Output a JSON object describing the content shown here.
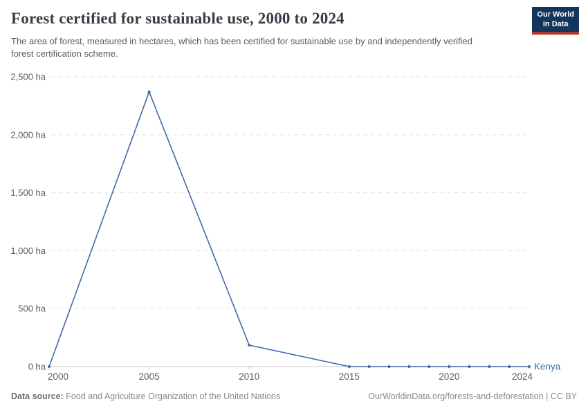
{
  "header": {
    "logo": {
      "line1": "Our World",
      "line2": "in Data",
      "background_color": "#14355c",
      "accent_color": "#b03a2e"
    }
  },
  "chart_data": {
    "type": "line",
    "title": "Forest certified for sustainable use, 2000 to 2024",
    "subtitle": "The area of forest, measured in hectares, which has been certified for sustainable use by and independently verified forest certification scheme.",
    "xlabel": "",
    "ylabel": "",
    "unit": "ha",
    "xlim": [
      2000,
      2024
    ],
    "ylim": [
      0,
      2500
    ],
    "grid": "horizontal-dashed",
    "legend_position": "end-of-line",
    "x_ticks": [
      {
        "value": 2000,
        "label": "2000"
      },
      {
        "value": 2005,
        "label": "2005"
      },
      {
        "value": 2010,
        "label": "2010"
      },
      {
        "value": 2015,
        "label": "2015"
      },
      {
        "value": 2020,
        "label": "2020"
      },
      {
        "value": 2024,
        "label": "2024"
      }
    ],
    "y_ticks": [
      {
        "value": 0,
        "label": "0 ha"
      },
      {
        "value": 500,
        "label": "500 ha"
      },
      {
        "value": 1000,
        "label": "1,000 ha"
      },
      {
        "value": 1500,
        "label": "1,500 ha"
      },
      {
        "value": 2000,
        "label": "2,000 ha"
      },
      {
        "value": 2500,
        "label": "2,500 ha"
      }
    ],
    "series": [
      {
        "name": "Kenya",
        "color": "#3d6aa8",
        "points": [
          [
            2000,
            0
          ],
          [
            2005,
            2370
          ],
          [
            2010,
            185
          ],
          [
            2015,
            0
          ],
          [
            2016,
            0
          ],
          [
            2017,
            0
          ],
          [
            2018,
            0
          ],
          [
            2019,
            0
          ],
          [
            2020,
            0
          ],
          [
            2021,
            0
          ],
          [
            2022,
            0
          ],
          [
            2023,
            0
          ],
          [
            2024,
            0
          ]
        ]
      }
    ],
    "axis_color": "#c6c6c6",
    "gridline_color": "#e3e3e3",
    "tick_label_color": "#5b5b5b"
  },
  "footer": {
    "source_label": "Data source:",
    "source_text": "Food and Agriculture Organization of the United Nations",
    "attribution": "OurWorldinData.org/forests-and-deforestation | CC BY"
  }
}
